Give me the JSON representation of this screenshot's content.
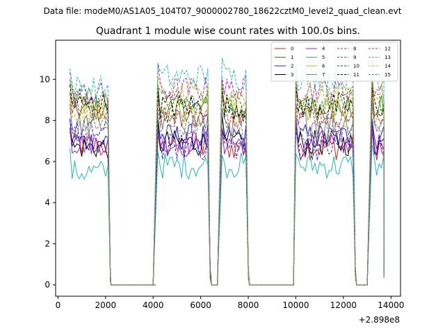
{
  "chart_data": {
    "type": "line",
    "suptitle": "Data file: modeM0/AS1A05_104T07_9000002780_18622cztM0_level2_quad_clean.evt",
    "title": "Quadrant 1 module wise count rates with 100.0s bins.",
    "xlabel": "",
    "ylabel": "",
    "x_offset_label": "+2.898e8",
    "xlim": [
      -100,
      14400
    ],
    "ylim": [
      -0.55,
      11.9
    ],
    "xticks": [
      0,
      2000,
      4000,
      6000,
      8000,
      10000,
      12000,
      14000
    ],
    "yticks": [
      0,
      2,
      4,
      6,
      8,
      10
    ],
    "legend_position": "upper-right",
    "segments": [
      {
        "start": 500,
        "end": 2100,
        "drop_end": 2200
      },
      {
        "start": 4200,
        "end": 6300,
        "rise_start": 4000,
        "drop_end": 6400
      },
      {
        "start": 6900,
        "end": 7900,
        "rise_start": 6700,
        "drop_end": 8000
      },
      {
        "start": 10000,
        "end": 12400,
        "rise_start": 9900,
        "drop_end": 12500
      },
      {
        "start": 13200,
        "end": 13700,
        "rise_start": 13000,
        "drop_end": 13700
      }
    ],
    "series": [
      {
        "name": "0",
        "color": "#d62020",
        "dash": false,
        "level": 6.8,
        "level_seg2": 6.7
      },
      {
        "name": "1",
        "color": "#2a8a2a",
        "dash": false,
        "level": 8.5,
        "level_seg2": 8.6
      },
      {
        "name": "2",
        "color": "#1f1fe0",
        "dash": false,
        "level": 7.0,
        "level_seg2": 7.2
      },
      {
        "name": "3",
        "color": "#000000",
        "dash": false,
        "level": 6.7,
        "level_seg2": 6.9
      },
      {
        "name": "4",
        "color": "#a020c0",
        "dash": false,
        "level": 6.9,
        "level_seg2": 6.9
      },
      {
        "name": "5",
        "color": "#20b8b8",
        "dash": false,
        "level": 5.5,
        "level_seg2": 5.8
      },
      {
        "name": "6",
        "color": "#b8b820",
        "dash": false,
        "level": 8.9,
        "level_seg2": 8.4
      },
      {
        "name": "7",
        "color": "#7a7a7a",
        "dash": false,
        "level": 7.8,
        "level_seg2": 7.9
      },
      {
        "name": "8",
        "color": "#d62020",
        "dash": true,
        "level": 8.6,
        "level_seg2": 8.3
      },
      {
        "name": "9",
        "color": "#2a8a2a",
        "dash": true,
        "level": 9.0,
        "level_seg2": 8.9
      },
      {
        "name": "10",
        "color": "#1f1fe0",
        "dash": true,
        "level": 7.4,
        "level_seg2": 6.7
      },
      {
        "name": "11",
        "color": "#000000",
        "dash": true,
        "level": 8.8,
        "level_seg2": 8.7
      },
      {
        "name": "12",
        "color": "#c020c0",
        "dash": true,
        "level": 9.3,
        "level_seg2": 9.5
      },
      {
        "name": "13",
        "color": "#20b8b8",
        "dash": true,
        "level": 9.6,
        "level_seg2": 10.1
      },
      {
        "name": "14",
        "color": "#b8b820",
        "dash": true,
        "level": 8.3,
        "level_seg2": 9.2
      },
      {
        "name": "15",
        "color": "#7a7a7a",
        "dash": true,
        "level": 7.7,
        "level_seg2": 7.5
      }
    ]
  }
}
